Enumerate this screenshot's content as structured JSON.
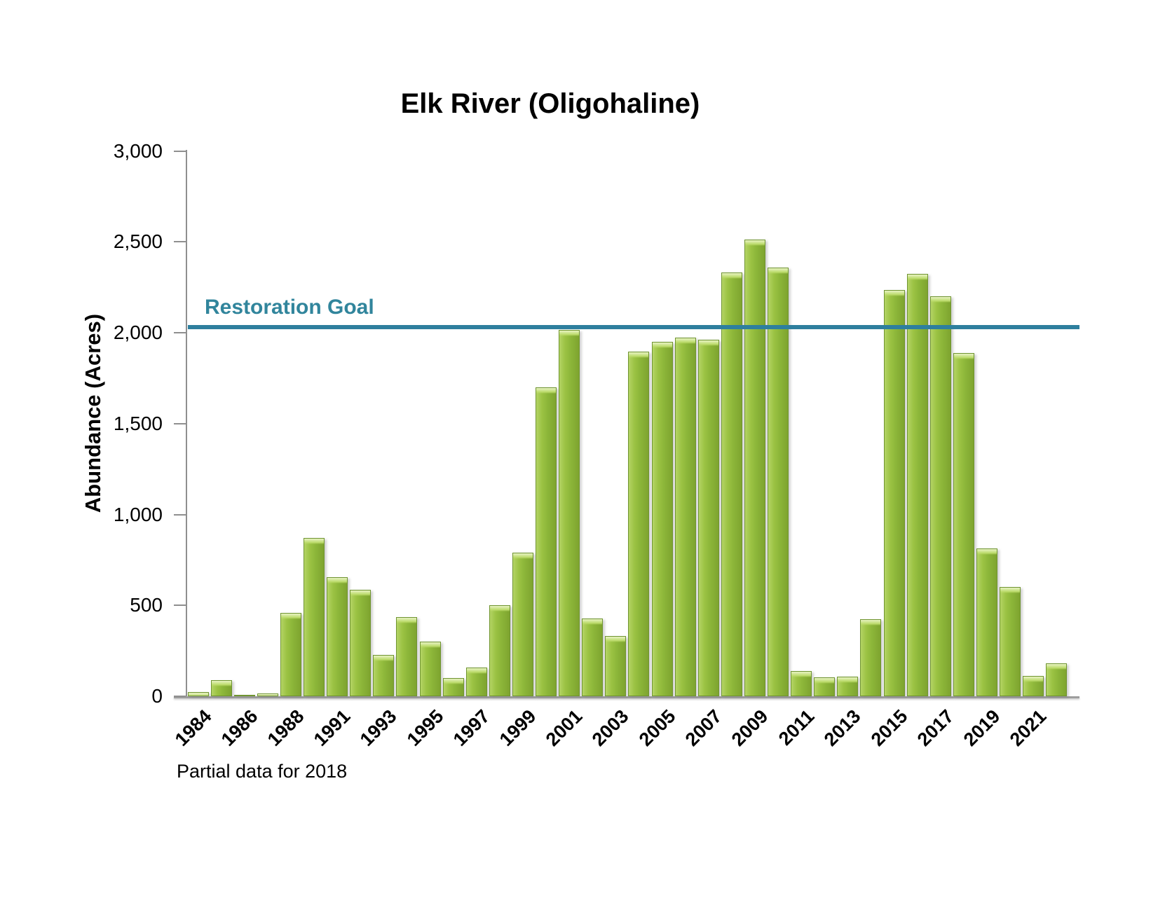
{
  "chart_data": {
    "type": "bar",
    "title": "Elk River (Oligohaline)",
    "ylabel": "Abundance (Acres)",
    "xlabel": "",
    "note": "Partial data for 2018",
    "legend_position": "none",
    "grid": false,
    "ylim": [
      0,
      3000
    ],
    "ytick_step": 500,
    "ytick_labels": [
      "0",
      "500",
      "1,000",
      "1,500",
      "2,000",
      "2,500",
      "3,000"
    ],
    "ytick_values": [
      0,
      500,
      1000,
      1500,
      2000,
      2500,
      3000
    ],
    "goal": {
      "label": "Restoration Goal",
      "value": 2030
    },
    "x_label_every_other_starting_first": true,
    "categories": [
      1984,
      1985,
      1986,
      1987,
      1988,
      1990,
      1991,
      1992,
      1993,
      1994,
      1995,
      1996,
      1997,
      1998,
      1999,
      2000,
      2001,
      2002,
      2003,
      2004,
      2005,
      2006,
      2007,
      2008,
      2009,
      2010,
      2011,
      2012,
      2013,
      2014,
      2015,
      2016,
      2017,
      2018,
      2019,
      2020,
      2021,
      2022
    ],
    "values": [
      25,
      90,
      8,
      14,
      460,
      872,
      655,
      585,
      228,
      436,
      300,
      100,
      158,
      500,
      790,
      1700,
      2015,
      428,
      331,
      1897,
      1950,
      1973,
      1961,
      2331,
      2512,
      2358,
      140,
      105,
      108,
      425,
      2235,
      2322,
      2200,
      1888,
      813,
      600,
      110,
      180
    ],
    "visible_x_labels": [
      "1984",
      "1986",
      "1988",
      "1991",
      "1993",
      "1995",
      "1997",
      "1999",
      "2001",
      "2003",
      "2005",
      "2007",
      "2009",
      "2011",
      "2013",
      "2015",
      "2017",
      "2019",
      "2021"
    ],
    "colors": {
      "bar_fill": "#93bd3a",
      "bar_highlight": "#d3e89b",
      "bar_edge": "#6f9430",
      "goal_line": "#2e7f9e",
      "goal_text": "#31859c",
      "axis": "#8f8f8f",
      "text": "#000000",
      "background": "#ffffff"
    }
  }
}
